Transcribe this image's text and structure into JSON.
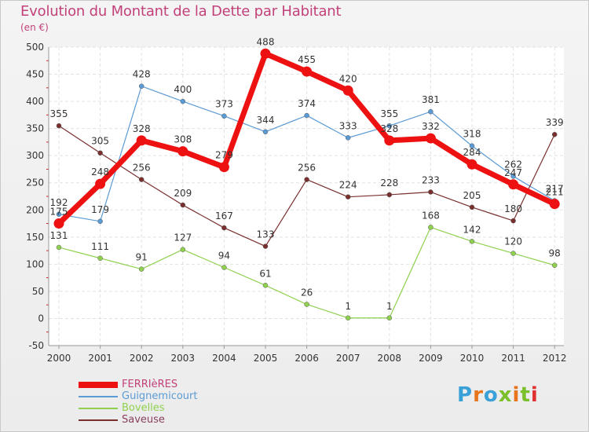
{
  "title": "Evolution du Montant de la Dette par Habitant",
  "unit": "(en €)",
  "logo": {
    "text": "Proxiti",
    "colors": [
      "#3aa0d8",
      "#e8741c",
      "#3aa0d8",
      "#7bbf2a",
      "#e8741c",
      "#7bbf2a",
      "#e03030"
    ]
  },
  "chart_data": {
    "type": "line",
    "x": [
      "2000",
      "2001",
      "2002",
      "2003",
      "2004",
      "2005",
      "2006",
      "2007",
      "2008",
      "2009",
      "2010",
      "2011",
      "2012"
    ],
    "ylim": [
      -50,
      500
    ],
    "yticks": [
      -50,
      0,
      50,
      100,
      150,
      200,
      250,
      300,
      350,
      400,
      450,
      500
    ],
    "grid": true,
    "legend_position": "bottom-left",
    "series": [
      {
        "name": "FERRIèRES",
        "color": "#ee1111",
        "emphasis": true,
        "values": [
          175,
          248,
          328,
          308,
          279,
          488,
          455,
          420,
          328,
          332,
          284,
          247,
          211
        ],
        "labels": [
          "175",
          "248",
          "328",
          "308",
          "279",
          "488",
          "455",
          "420",
          "328",
          "332",
          "284",
          "247",
          "211"
        ]
      },
      {
        "name": "Guignemicourt",
        "color": "#5b9bd5",
        "values": [
          192,
          179,
          428,
          400,
          373,
          344,
          374,
          333,
          355,
          381,
          318,
          262,
          217
        ],
        "labels": [
          "192",
          "179",
          "428",
          "400",
          "373",
          "344",
          "374",
          "333",
          "355",
          "381",
          "318",
          "262",
          "217"
        ]
      },
      {
        "name": "Bovelles",
        "color": "#8fd14f",
        "values": [
          131,
          111,
          91,
          127,
          94,
          61,
          26,
          1,
          1,
          168,
          142,
          120,
          98
        ],
        "labels": [
          "131",
          "111",
          "91",
          "127",
          "94",
          "61",
          "26",
          "1",
          "1",
          "168",
          "142",
          "120",
          "98"
        ]
      },
      {
        "name": "Saveuse",
        "color": "#7a2f2f",
        "values": [
          355,
          305,
          256,
          209,
          167,
          133,
          256,
          224,
          228,
          233,
          205,
          180,
          339
        ],
        "labels": [
          "355",
          "305",
          "256",
          "209",
          "167",
          "133",
          "256",
          "224",
          "228",
          "233",
          "205",
          "180",
          "339"
        ]
      }
    ]
  }
}
